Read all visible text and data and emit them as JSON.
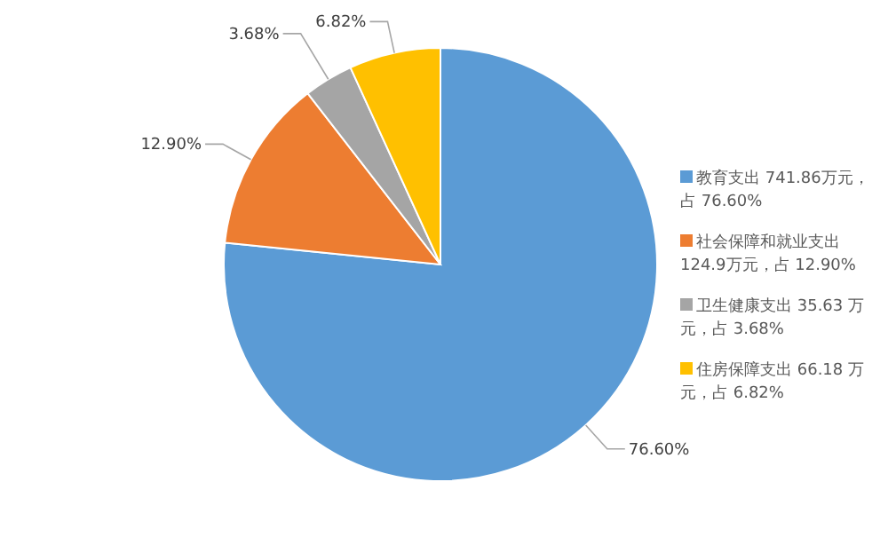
{
  "chart_data": {
    "type": "pie",
    "categories": [
      "教育支出 741.86万元，占 76.60%",
      "社会保障和就业支出 124.9万元，占 12.90%",
      "卫生健康支出 35.63 万元，占 3.68%",
      "住房保障支出 66.18 万元，占 6.82%"
    ],
    "values": [
      76.6,
      12.9,
      3.68,
      6.82
    ],
    "value_labels": [
      "76.60%",
      "12.90%",
      "3.68%",
      "6.82%"
    ],
    "colors": [
      "#5b9bd5",
      "#ed7d31",
      "#a5a5a5",
      "#ffc000"
    ],
    "legend": "right"
  }
}
